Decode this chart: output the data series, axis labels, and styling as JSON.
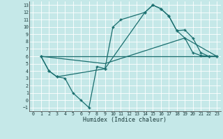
{
  "xlabel": "Humidex (Indice chaleur)",
  "bg_color": "#c5e8e8",
  "grid_color": "#ffffff",
  "line_color": "#1a6e6e",
  "xlim": [
    -0.5,
    23.5
  ],
  "ylim": [
    -1.5,
    13.5
  ],
  "xticks": [
    0,
    1,
    2,
    3,
    4,
    5,
    6,
    7,
    8,
    9,
    10,
    11,
    12,
    13,
    14,
    15,
    16,
    17,
    18,
    19,
    20,
    21,
    22,
    23
  ],
  "yticks": [
    -1,
    0,
    1,
    2,
    3,
    4,
    5,
    6,
    7,
    8,
    9,
    10,
    11,
    12,
    13
  ],
  "curve1_x": [
    1,
    2,
    3,
    4,
    5,
    6,
    7,
    8,
    9,
    10,
    11,
    14,
    15,
    16,
    17,
    18,
    19,
    20,
    21,
    22,
    23
  ],
  "curve1_y": [
    6,
    4,
    3.2,
    3.0,
    1,
    0,
    -1,
    4.6,
    4.3,
    10,
    11,
    12,
    13,
    12.5,
    11.5,
    9.5,
    8.5,
    6.5,
    6.1,
    6,
    6
  ],
  "curve2_x": [
    1,
    2,
    3,
    9,
    14,
    15,
    16,
    17,
    18,
    19,
    20,
    21,
    22,
    23
  ],
  "curve2_y": [
    6,
    4,
    3.2,
    4.3,
    12,
    13,
    12.5,
    11.5,
    9.5,
    9.6,
    8.5,
    6.5,
    6,
    6
  ],
  "curve3_x": [
    1,
    23
  ],
  "curve3_y": [
    6,
    6
  ],
  "curve4_x": [
    1,
    9,
    19,
    23
  ],
  "curve4_y": [
    6,
    5,
    8.5,
    6
  ]
}
